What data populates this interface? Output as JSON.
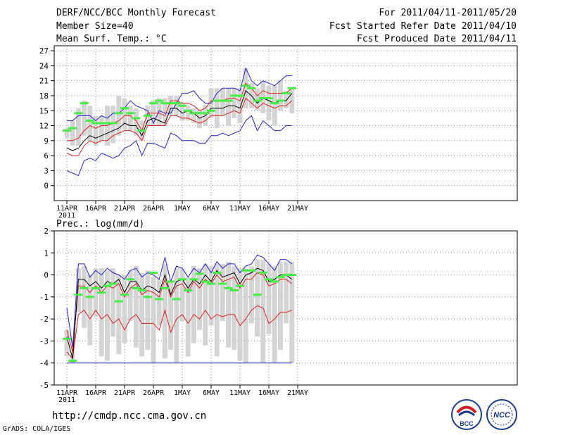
{
  "header": {
    "title": "DERF/NCC/BCC Monthly Forecast",
    "member_size": "Member Size=40",
    "variable": "Mean Surf. Temp.: °C",
    "for_range": "For 2011/04/11-2011/05/20",
    "fcst_started": "Fcst Started Refer Date 2011/04/10",
    "fcst_produced": "Fcst Produced Date 2011/04/11"
  },
  "footer": {
    "url": "http://cmdp.ncc.cma.gov.cn",
    "grads": "GrADS: COLA/IGES",
    "logo_bcc": "BCC",
    "logo_ncc": "NCC"
  },
  "colors": {
    "box": "#d4d4d4",
    "green": "#44ee44",
    "red": "#dd2222",
    "blue": "#2222cc",
    "black": "#000000",
    "grid": "#8a8a8a"
  },
  "chart_data": [
    {
      "type": "line",
      "title": "Mean Surf. Temp.: °C",
      "xlabel": "",
      "ylabel": "",
      "x_ticks": [
        "11APR",
        "16APR",
        "21APR",
        "26APR",
        "1MAY",
        "6MAY",
        "11MAY",
        "16MAY",
        "21MAY"
      ],
      "x_year": "2011",
      "ylim": [
        -3,
        28
      ],
      "yticks": [
        "0",
        "3",
        "6",
        "9",
        "12",
        "15",
        "18",
        "21",
        "24",
        "27"
      ],
      "grid": true,
      "days": 40,
      "series": [
        {
          "name": "max",
          "color": "blue",
          "values": [
            13,
            13,
            14,
            14,
            14,
            13,
            14,
            13.5,
            14.5,
            14.5,
            15.5,
            17,
            16,
            15.5,
            15,
            12.5,
            15,
            14.5,
            14.5,
            16.5,
            18.5,
            18.5,
            19,
            17.5,
            16.5,
            16.5,
            18.5,
            19.5,
            19.5,
            19.5,
            19,
            23.5,
            21,
            20,
            21,
            20.5,
            20,
            21,
            22,
            22
          ]
        },
        {
          "name": "upper",
          "color": "red",
          "values": [
            9,
            9,
            9.5,
            11,
            12,
            11.5,
            12,
            12,
            12.5,
            13,
            14,
            14,
            13,
            11,
            14.5,
            14.5,
            14.5,
            14,
            17,
            17,
            16.5,
            16.5,
            16,
            15,
            15.5,
            17,
            17,
            17,
            17.5,
            17.5,
            17,
            20.5,
            19.5,
            18,
            19,
            18.5,
            18.5,
            18.5,
            18.5,
            19.5
          ]
        },
        {
          "name": "mean",
          "color": "black",
          "values": [
            7.5,
            7,
            7.5,
            9,
            10,
            9.5,
            10,
            10.5,
            11,
            11.5,
            12.5,
            12,
            12,
            10,
            13,
            13.5,
            13,
            12.5,
            15.5,
            15.5,
            14.5,
            15,
            14.5,
            13.5,
            14,
            15.5,
            15.5,
            15.5,
            16,
            16,
            15.5,
            19,
            18,
            16.5,
            17.5,
            17,
            16.5,
            17,
            17,
            18.5
          ]
        },
        {
          "name": "lower",
          "color": "red",
          "values": [
            6.5,
            6,
            6,
            8,
            9,
            8.5,
            9,
            9,
            10,
            10.5,
            11,
            11,
            10.5,
            9,
            12,
            12,
            12,
            12,
            14,
            14,
            13.5,
            13.5,
            13,
            12.5,
            13,
            14,
            14,
            14,
            14.5,
            15,
            14.5,
            17.5,
            16.5,
            15.5,
            16.5,
            16,
            15.5,
            16,
            16,
            17
          ]
        },
        {
          "name": "min",
          "color": "blue",
          "values": [
            3,
            2.5,
            2,
            5,
            5.5,
            5,
            6.5,
            6,
            5.5,
            6,
            7.5,
            8,
            9,
            6,
            8.5,
            8.5,
            8,
            7.5,
            10.5,
            10,
            9,
            9,
            9,
            8.5,
            8.5,
            10,
            10,
            10.5,
            10,
            10.5,
            11,
            13,
            14,
            11,
            13,
            12,
            11,
            11,
            12,
            12
          ]
        },
        {
          "name": "observed",
          "color": "green",
          "values": [
            11,
            11.5,
            14.5,
            16.5,
            13,
            12.5,
            12.5,
            12.5,
            12.5,
            14.5,
            15.5,
            14.5,
            13.5,
            11,
            14,
            16.5,
            17,
            16.5,
            16.5,
            16.5,
            16,
            15,
            14.5,
            14.5,
            14.5,
            15,
            17,
            17,
            17,
            18,
            18,
            20,
            19.5,
            17,
            17.5,
            17.5,
            16.5,
            17,
            18.5,
            19.5
          ]
        },
        {
          "name": "box_high",
          "color": "box",
          "values": [
            11.5,
            13,
            15.5,
            17,
            16,
            14,
            14,
            16,
            16,
            18,
            17.5,
            16,
            15.5,
            13,
            16,
            17,
            17.5,
            17.5,
            18,
            18,
            16.5,
            16,
            15.5,
            15,
            16,
            19.5,
            19.5,
            19.5,
            19.5,
            19.5,
            19.5,
            23.5,
            20.5,
            19.5,
            21,
            20,
            20,
            21,
            19,
            19.5
          ]
        },
        {
          "name": "box_low",
          "color": "box",
          "values": [
            9.5,
            8,
            8,
            10,
            9,
            8,
            9,
            8,
            8.5,
            10,
            11,
            11,
            10,
            9,
            12,
            12,
            12,
            12,
            14,
            14,
            13,
            13,
            12.5,
            11.5,
            12,
            13.5,
            11.5,
            14,
            12,
            13.5,
            12.5,
            15.5,
            15.5,
            15,
            14.5,
            13,
            12,
            15,
            15.5,
            14.5
          ]
        }
      ]
    },
    {
      "type": "line",
      "title": "Prec.: log(mm/d)",
      "xlabel": "",
      "ylabel": "",
      "x_ticks": [
        "11APR",
        "16APR",
        "21APR",
        "26APR",
        "1MAY",
        "6MAY",
        "11MAY",
        "16MAY",
        "21MAY"
      ],
      "x_year": "2011",
      "ylim": [
        -5,
        2
      ],
      "yticks": [
        "-5",
        "-4",
        "-3",
        "-2",
        "-1",
        "0",
        "1",
        "2"
      ],
      "grid": true,
      "days": 40,
      "series": [
        {
          "name": "max",
          "color": "blue",
          "values": [
            -1.5,
            -3.3,
            0.5,
            0.5,
            -0.1,
            0.2,
            0,
            0.3,
            0.1,
            0,
            -0.2,
            0.2,
            0.3,
            -0.1,
            0.1,
            0,
            -0.2,
            0.8,
            -0.3,
            0.4,
            0.3,
            -0.1,
            0.3,
            0.1,
            0.5,
            0.1,
            0.6,
            0.3,
            0.5,
            0.5,
            0.1,
            0.4,
            0.5,
            0.9,
            0.8,
            0.5,
            0.2,
            0.7,
            0.7,
            0.5
          ]
        },
        {
          "name": "upper",
          "color": "red",
          "values": [
            -2.5,
            -3.5,
            -0.5,
            -0.5,
            -0.8,
            -0.5,
            -0.8,
            -0.5,
            -0.6,
            -0.4,
            -1,
            -0.6,
            -0.4,
            -0.9,
            -0.7,
            -0.8,
            -1,
            -0.2,
            -1,
            -0.5,
            -0.4,
            -0.8,
            -0.3,
            -0.6,
            -0.2,
            -0.4,
            0,
            -0.3,
            -0.2,
            -0.1,
            -0.6,
            -0.2,
            -0.2,
            0.1,
            0,
            -0.5,
            -0.4,
            -0.2,
            -0.2,
            -0.4
          ]
        },
        {
          "name": "mean",
          "color": "black",
          "values": [
            -2.8,
            -3.8,
            -0.2,
            -0.2,
            -0.5,
            -0.3,
            -0.6,
            -0.3,
            -0.4,
            -0.2,
            -0.8,
            -0.3,
            -0.3,
            -0.7,
            -0.5,
            -0.6,
            -0.8,
            0,
            -0.9,
            -0.3,
            -0.2,
            -0.6,
            -0.2,
            -0.4,
            0,
            -0.3,
            0.2,
            -0.1,
            0,
            0.1,
            -0.4,
            0,
            0.1,
            0.3,
            0.2,
            -0.3,
            -0.2,
            0,
            0,
            -0.2
          ]
        },
        {
          "name": "lower",
          "color": "red",
          "values": [
            -3.5,
            -3.8,
            -1.8,
            -1.6,
            -2,
            -1.6,
            -2,
            -1.8,
            -2.2,
            -2,
            -2.5,
            -2,
            -1.8,
            -2.2,
            -2.2,
            -2.2,
            -2.5,
            -1.6,
            -2.6,
            -2,
            -1.8,
            -2.2,
            -1.8,
            -2,
            -1.6,
            -2,
            -1.8,
            -1.9,
            -1.8,
            -1.8,
            -2.3,
            -2,
            -1.6,
            -1.4,
            -1.5,
            -2.2,
            -2,
            -1.7,
            -1.7,
            -1.6
          ]
        },
        {
          "name": "min",
          "color": "blue",
          "values": [
            -4,
            -4,
            -4,
            -4,
            -4,
            -4,
            -4,
            -4,
            -4,
            -4,
            -4,
            -4,
            -4,
            -4,
            -4,
            -4,
            -4,
            -4,
            -4,
            -4,
            -4,
            -4,
            -4,
            -4,
            -4,
            -4,
            -4,
            -4,
            -4,
            -4,
            -4,
            -4,
            -4,
            -4,
            -4,
            -4,
            -4,
            -4,
            -4,
            -4
          ]
        },
        {
          "name": "observed",
          "color": "green",
          "values": [
            -2.9,
            -3.9,
            -0.9,
            -0.6,
            -1,
            -0.6,
            -0.8,
            -0.5,
            -0.4,
            -1.2,
            -0.9,
            -0.2,
            -0.6,
            -0.7,
            -1,
            0.1,
            -1.1,
            -0.6,
            -0.3,
            -1.1,
            -0.2,
            -0.7,
            -0.2,
            0.05,
            -0.3,
            -0.4,
            0.1,
            -0.4,
            -0.6,
            -0.7,
            -0.5,
            0.2,
            0.2,
            -0.9,
            0.1,
            -0.2,
            -0.3,
            -0.1,
            0,
            0
          ]
        },
        {
          "name": "box_high",
          "color": "box",
          "values": [
            -2.5,
            -3.5,
            0.3,
            0.4,
            0,
            0.3,
            0.3,
            0.2,
            0.3,
            0,
            0,
            0.2,
            0.4,
            0.1,
            0.2,
            -0.1,
            -0.2,
            0.5,
            -0.3,
            0.3,
            0.3,
            -0.1,
            0.4,
            0.3,
            0.5,
            0.4,
            0.5,
            0.5,
            0.6,
            0.4,
            0.3,
            0.3,
            0.4,
            0.7,
            0.7,
            0.5,
            0.4,
            0.6,
            0.6,
            0.6
          ]
        },
        {
          "name": "box_low",
          "color": "box",
          "values": [
            -3.7,
            -4,
            -1.7,
            -2.4,
            -3.2,
            -1.9,
            -3.7,
            -3.9,
            -2.8,
            -3.6,
            -3.1,
            -2.1,
            -3.3,
            -3.7,
            -3.4,
            -4,
            -2.3,
            -3.8,
            -3.4,
            -4,
            -2.1,
            -3.7,
            -3.1,
            -2.5,
            -3.2,
            -2.3,
            -3.7,
            -2.1,
            -3.3,
            -3.4,
            -3.9,
            -4,
            -2.2,
            -2.8,
            -4,
            -2.7,
            -4,
            -3.4,
            -2.2,
            -4
          ]
        }
      ]
    }
  ]
}
